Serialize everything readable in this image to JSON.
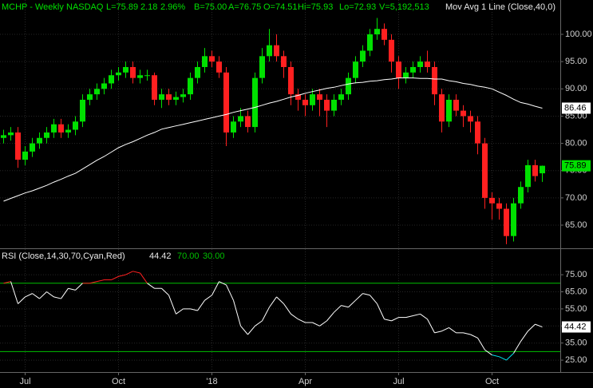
{
  "chart_data": [
    {
      "type": "candlestick",
      "title_parts": [
        "MCHP - Weekly",
        "NASDAQ",
        "L=75.89",
        "2.18",
        "2.96%",
        "B=75.00",
        "A=76.75",
        "O=74.51",
        "Hi=75.93",
        "Lo=72.93",
        "V=5,192,513",
        "Mov Avg 1 Line (Close,40,0)"
      ],
      "title_colors": [
        "#00e000",
        "#00e000",
        "#00e000",
        "#00e000",
        "#00e000",
        "#00e000",
        "#00e000",
        "#00e000",
        "#00e000",
        "#00e000",
        "#00e000",
        "#e8e8e8"
      ],
      "x": [
        0,
        1,
        2,
        3,
        4,
        5,
        6,
        7,
        8,
        9,
        10,
        11,
        12,
        13,
        14,
        15,
        16,
        17,
        18,
        19,
        20,
        21,
        22,
        23,
        24,
        25,
        26,
        27,
        28,
        29,
        30,
        31,
        32,
        33,
        34,
        35,
        36,
        37,
        38,
        39,
        40,
        41,
        42,
        43,
        44,
        45,
        46,
        47,
        48,
        49,
        50,
        51,
        52,
        53,
        54,
        55,
        56,
        57,
        58,
        59,
        60,
        61,
        62,
        63,
        64,
        65,
        66,
        67,
        68,
        69,
        70,
        71,
        72,
        73,
        74,
        75
      ],
      "open": [
        81,
        81.5,
        82,
        77,
        78.5,
        80,
        81,
        82,
        83.5,
        82,
        82.5,
        84,
        88,
        89,
        90,
        91,
        92.5,
        93,
        94,
        92,
        92.5,
        92.5,
        88,
        89,
        88,
        88.5,
        89,
        92,
        94,
        96,
        95,
        93,
        82,
        84,
        85,
        83,
        92,
        96,
        98,
        96,
        94,
        89,
        88,
        87,
        89,
        88,
        86,
        88,
        89,
        92,
        95,
        97,
        100,
        101,
        99,
        95,
        92,
        93,
        94,
        95,
        94,
        89,
        84,
        88,
        86,
        85,
        84,
        80,
        70,
        69,
        68,
        63,
        69,
        72,
        76,
        74.51
      ],
      "high": [
        82.5,
        83,
        83,
        79.5,
        81,
        82,
        83,
        84.5,
        84.5,
        83.5,
        85,
        89,
        90,
        91,
        92,
        93.5,
        94,
        95,
        95,
        93.5,
        93.5,
        93,
        90,
        90,
        89.5,
        90,
        93,
        95,
        97.5,
        97,
        96,
        94,
        85,
        86.5,
        86,
        93,
        97.5,
        101,
        100,
        97,
        95,
        90,
        89,
        90,
        90,
        89,
        89,
        90,
        93,
        96,
        98,
        101,
        103,
        102,
        100,
        96,
        94,
        95,
        96,
        97,
        95,
        90,
        89,
        89,
        87,
        86,
        85,
        81,
        71,
        70,
        69,
        70,
        73,
        77,
        77,
        75.93
      ],
      "low": [
        80,
        80.5,
        75.5,
        76,
        77.5,
        79,
        80,
        81,
        81,
        81,
        81.5,
        83,
        87,
        88,
        89,
        90,
        91.5,
        92,
        91,
        91,
        91.5,
        87,
        86.5,
        87,
        87,
        87.5,
        88,
        91,
        93,
        94,
        92,
        79.5,
        81,
        83,
        82,
        82,
        91,
        95,
        95,
        92,
        87,
        86,
        85,
        86,
        85,
        83,
        85,
        87,
        88,
        91,
        94,
        96,
        99,
        98,
        93,
        90,
        91,
        92,
        93,
        93,
        87,
        82,
        83,
        85,
        83,
        82,
        78,
        68,
        66,
        66,
        61.5,
        62,
        68,
        71,
        73,
        72.93
      ],
      "close": [
        81.5,
        82,
        77,
        78.5,
        80,
        81,
        82,
        83.5,
        82,
        82.5,
        84,
        88,
        89,
        90,
        91,
        92.5,
        93,
        94,
        92,
        92.5,
        92.5,
        88,
        89,
        88,
        88.5,
        89,
        92,
        94,
        96,
        95,
        93,
        82,
        84,
        85,
        83,
        92,
        96,
        98,
        96,
        94,
        89,
        88,
        87,
        89,
        88,
        86,
        88,
        89,
        92,
        95,
        97,
        100,
        101,
        99,
        95,
        92,
        93,
        94,
        95,
        94,
        89,
        84,
        88,
        86,
        85,
        84,
        80,
        70,
        69,
        68,
        63,
        69,
        72,
        76,
        74,
        75.89
      ],
      "up_color": "#00e000",
      "down_color": "#ff2020",
      "series": [
        {
          "name": "Mov Avg 1 Line (Close,40,0)",
          "color": "#ffffff",
          "values": [
            69.4,
            69.9,
            70.4,
            70.9,
            71.3,
            71.8,
            72.3,
            72.9,
            73.4,
            74.0,
            74.5,
            75.3,
            76.1,
            76.9,
            77.6,
            78.4,
            79.2,
            79.8,
            80.3,
            80.9,
            81.5,
            82.0,
            82.6,
            82.9,
            83.2,
            83.5,
            83.8,
            84.1,
            84.4,
            84.7,
            85.0,
            85.3,
            85.7,
            86.0,
            86.3,
            86.6,
            87.0,
            87.4,
            87.7,
            88.1,
            88.5,
            88.8,
            89.2,
            89.5,
            89.8,
            90.1,
            90.3,
            90.6,
            90.9,
            91.1,
            91.2,
            91.4,
            91.5,
            91.7,
            91.8,
            92.0,
            92.0,
            92.0,
            91.9,
            91.9,
            91.8,
            91.8,
            91.5,
            91.3,
            91.0,
            90.8,
            90.5,
            90.3,
            90.0,
            89.4,
            88.8,
            88.1,
            87.5,
            87.2,
            86.8,
            86.46
          ]
        }
      ],
      "markers": [
        {
          "value": 75.89,
          "label": "75.89",
          "color": "#00e000"
        },
        {
          "value": 86.46,
          "label": "86.46",
          "color": "#ffffff"
        }
      ],
      "xlim": [
        -0.5,
        77.5
      ],
      "ylim": [
        60.9,
        106.3
      ],
      "yticks": [
        {
          "value": 65,
          "label": "65.00"
        },
        {
          "value": 70,
          "label": "70.00"
        },
        {
          "value": 75,
          "label": "75.00"
        },
        {
          "value": 80,
          "label": "80.00"
        },
        {
          "value": 85,
          "label": "85.00"
        },
        {
          "value": 90,
          "label": "90.00"
        },
        {
          "value": 95,
          "label": "95.00"
        },
        {
          "value": 100,
          "label": "100.00"
        }
      ],
      "grid": true
    },
    {
      "type": "line",
      "title": "RSI (Close,14,30,70,Cyan,Red)",
      "x": [
        0,
        1,
        2,
        3,
        4,
        5,
        6,
        7,
        8,
        9,
        10,
        11,
        12,
        13,
        14,
        15,
        16,
        17,
        18,
        19,
        20,
        21,
        22,
        23,
        24,
        25,
        26,
        27,
        28,
        29,
        30,
        31,
        32,
        33,
        34,
        35,
        36,
        37,
        38,
        39,
        40,
        41,
        42,
        43,
        44,
        45,
        46,
        47,
        48,
        49,
        50,
        51,
        52,
        53,
        54,
        55,
        56,
        57,
        58,
        59,
        60,
        61,
        62,
        63,
        64,
        65,
        66,
        67,
        68,
        69,
        70,
        71,
        72,
        73,
        74,
        75
      ],
      "series": [
        {
          "name": "RSI",
          "color": "#ffffff",
          "values": [
            70,
            71,
            58,
            62,
            64,
            61,
            65,
            62,
            61,
            67,
            66,
            70,
            70,
            71,
            72,
            72,
            74,
            75,
            77,
            76,
            70,
            67,
            67,
            63,
            52,
            55,
            55,
            54,
            60,
            63,
            71,
            69,
            60,
            45,
            40,
            45,
            48,
            56,
            62,
            58,
            52,
            49,
            47,
            47,
            45,
            48,
            53,
            57,
            56,
            60,
            64,
            63,
            58,
            49,
            48,
            50,
            50,
            51,
            52,
            49,
            41,
            42,
            44,
            41,
            41,
            40,
            38,
            31,
            28,
            27,
            25,
            29,
            36,
            42,
            46,
            44.42
          ]
        }
      ],
      "overbought_color": "#ff2020",
      "oversold_color": "#00e5ee",
      "levels": [
        {
          "value": 70,
          "label": "70.00",
          "color": "#00c000"
        },
        {
          "value": 30,
          "label": "30.00",
          "color": "#00c000"
        }
      ],
      "markers": [
        {
          "value": 44.42,
          "label": "44.42",
          "color": "#ffffff"
        }
      ],
      "xlim": [
        -0.5,
        77.5
      ],
      "ylim": [
        18.5,
        90
      ],
      "yticks": [
        {
          "value": 25,
          "label": "25.00"
        },
        {
          "value": 35,
          "label": "35.00"
        },
        {
          "value": 45,
          "label": "45.00"
        },
        {
          "value": 55,
          "label": "55.00"
        },
        {
          "value": 65,
          "label": "65.00"
        },
        {
          "value": 75,
          "label": "75.00"
        }
      ],
      "xticks": [
        {
          "value": 3,
          "label": "Jul"
        },
        {
          "value": 16,
          "label": "Oct"
        },
        {
          "value": 29,
          "label": "'18"
        },
        {
          "value": 42,
          "label": "Apr"
        },
        {
          "value": 55,
          "label": "Jul"
        },
        {
          "value": 68,
          "label": "Oct"
        }
      ],
      "grid": true
    }
  ]
}
